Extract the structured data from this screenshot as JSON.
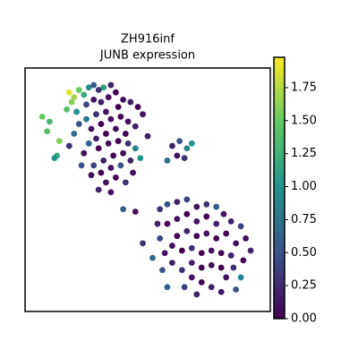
{
  "chart_data": {
    "type": "scatter",
    "title": "ZH916inf",
    "subtitle": "JUNB expression",
    "colormap": "viridis",
    "xlim": [
      0,
      100
    ],
    "ylim": [
      100,
      0
    ],
    "clim": [
      0,
      1.98
    ],
    "cticks": [
      {
        "value": 0,
        "label": "0.00"
      },
      {
        "value": 0.25,
        "label": "0.25"
      },
      {
        "value": 0.5,
        "label": "0.50"
      },
      {
        "value": 0.75,
        "label": "0.75"
      },
      {
        "value": 1,
        "label": "1.00"
      },
      {
        "value": 1.25,
        "label": "1.25"
      },
      {
        "value": 1.5,
        "label": "1.50"
      },
      {
        "value": 1.75,
        "label": "1.75"
      }
    ],
    "x": [
      18,
      20,
      22,
      19,
      24,
      17,
      21,
      26,
      28,
      30,
      32,
      35,
      25,
      28,
      31,
      34,
      37,
      40,
      43,
      46,
      48,
      38,
      33,
      29,
      25,
      22,
      27,
      31,
      35,
      39,
      42,
      45,
      41,
      37,
      33,
      29,
      26,
      24,
      30,
      34,
      38,
      42,
      45,
      40,
      36,
      32,
      28,
      27,
      31,
      35,
      39,
      43,
      33,
      37,
      30,
      35,
      41,
      44,
      47,
      50,
      14,
      10,
      7,
      9,
      13,
      12,
      20,
      18,
      23,
      40,
      45,
      60,
      63,
      66,
      62,
      65,
      68,
      58,
      55,
      58,
      62,
      66,
      70,
      74,
      78,
      81,
      84,
      88,
      90,
      92,
      89,
      85,
      82,
      88,
      86,
      80,
      76,
      72,
      68,
      64,
      60,
      57,
      55,
      54,
      58,
      62,
      66,
      70,
      74,
      78,
      82,
      86,
      78,
      74,
      70,
      66,
      62,
      60,
      64,
      68,
      72,
      76,
      80,
      84,
      80,
      76,
      72,
      68,
      52,
      56,
      70,
      65,
      48,
      58
    ],
    "y": [
      10,
      12,
      9,
      14,
      11,
      17,
      18,
      8,
      7,
      9,
      8,
      7,
      15,
      13,
      14,
      12,
      10,
      13,
      14,
      16,
      19,
      16,
      18,
      19,
      21,
      23,
      25,
      23,
      21,
      20,
      22,
      24,
      27,
      25,
      27,
      29,
      31,
      35,
      33,
      31,
      30,
      31,
      33,
      35,
      36,
      38,
      40,
      44,
      43,
      41,
      40,
      38,
      47,
      45,
      50,
      51,
      47,
      43,
      37,
      28,
      30,
      22,
      20,
      26,
      36,
      37,
      27,
      32,
      40,
      58,
      59,
      32,
      30,
      33,
      36,
      37,
      31,
      38,
      58,
      56,
      55,
      54,
      57,
      56,
      57,
      60,
      63,
      65,
      70,
      75,
      79,
      82,
      86,
      86,
      91,
      92,
      90,
      88,
      86,
      83,
      80,
      76,
      70,
      64,
      64,
      62,
      60,
      63,
      61,
      64,
      68,
      72,
      70,
      68,
      69,
      67,
      69,
      73,
      75,
      74,
      76,
      75,
      76,
      77,
      82,
      81,
      82,
      80,
      78,
      83,
      93,
      90,
      72,
      90
    ],
    "values": [
      1.9,
      1.7,
      1.5,
      1.6,
      1.2,
      1.4,
      1.0,
      0.9,
      0.6,
      0.3,
      1.1,
      0.2,
      0.4,
      0.1,
      0.2,
      0.1,
      0.0,
      0.1,
      0.2,
      0.0,
      0.1,
      0.0,
      0.1,
      0.3,
      0.8,
      0.5,
      0.1,
      0.0,
      0.1,
      0.0,
      0.1,
      0.2,
      0.0,
      0.1,
      0.0,
      0.2,
      0.6,
      0.1,
      0.0,
      0.1,
      0.0,
      0.3,
      0.9,
      0.1,
      0.0,
      0.2,
      0.4,
      0.1,
      0.0,
      0.1,
      0.5,
      0.2,
      0.1,
      0.0,
      0.2,
      0.1,
      0.3,
      0.1,
      1.0,
      0.2,
      1.6,
      1.3,
      1.5,
      1.4,
      1.2,
      1.0,
      0.7,
      0.3,
      0.5,
      0.6,
      0.1,
      0.2,
      0.5,
      0.9,
      0.1,
      0.3,
      1.0,
      0.7,
      0.3,
      0.5,
      0.2,
      0.4,
      0.1,
      0.3,
      0.6,
      0.1,
      0.2,
      0.4,
      0.1,
      0.2,
      0.0,
      0.3,
      0.1,
      0.9,
      0.5,
      0.1,
      0.2,
      0.0,
      0.1,
      0.3,
      0.2,
      0.1,
      0.4,
      0.2,
      0.0,
      0.1,
      0.0,
      0.1,
      0.0,
      0.2,
      0.0,
      0.1,
      0.0,
      0.1,
      0.0,
      0.2,
      0.0,
      0.1,
      0.0,
      0.3,
      0.0,
      0.1,
      0.0,
      0.2,
      0.0,
      0.1,
      0.0,
      0.2,
      0.7,
      0.5,
      0.2,
      0.4,
      0.3,
      0.6
    ]
  }
}
